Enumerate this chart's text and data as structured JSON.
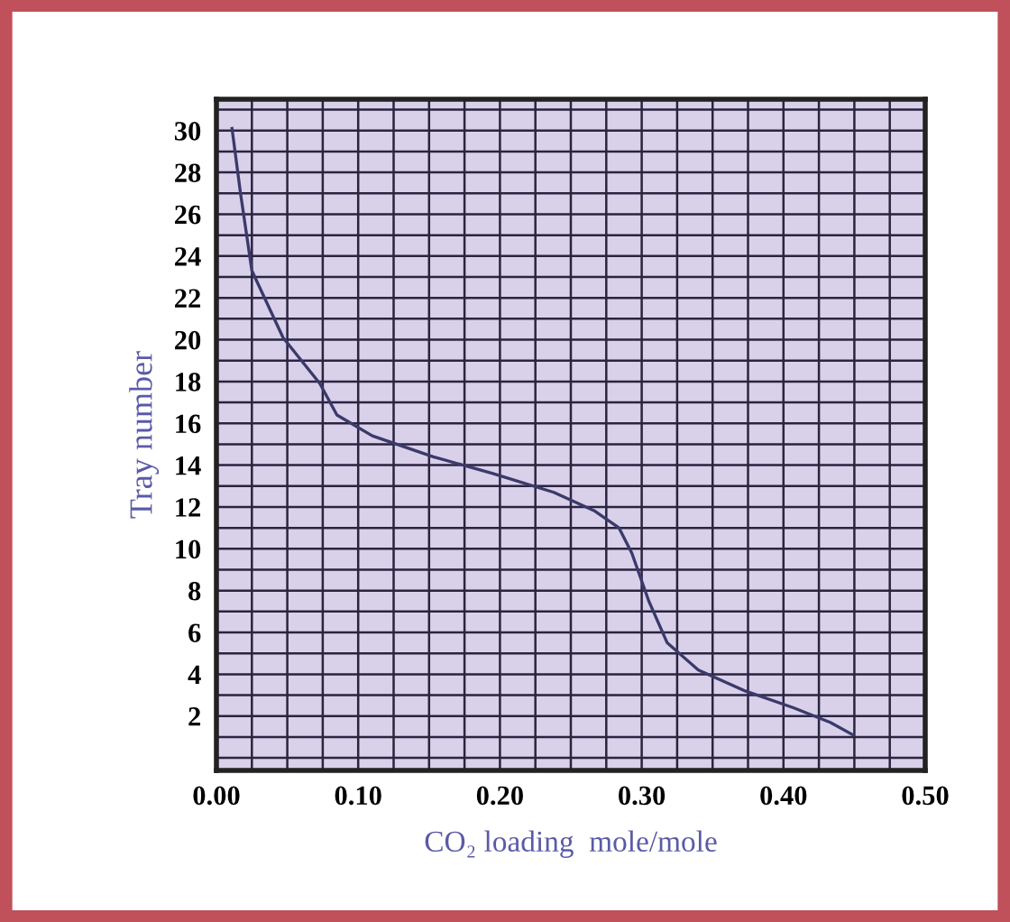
{
  "chart_data": {
    "type": "line",
    "xlabel": "CO₂ loading  mole/mole",
    "ylabel": "Tray number",
    "x": [
      0.011,
      0.017,
      0.025,
      0.047,
      0.073,
      0.085,
      0.11,
      0.153,
      0.195,
      0.238,
      0.267,
      0.284,
      0.293,
      0.305,
      0.318,
      0.34,
      0.373,
      0.407,
      0.433,
      0.449
    ],
    "series": [
      {
        "color": "#3a3a6a",
        "values": [
          30.1,
          27,
          23.3,
          20.1,
          17.9,
          16.4,
          15.4,
          14.4,
          13.6,
          12.7,
          11.8,
          11.0,
          9.8,
          7.5,
          5.5,
          4.2,
          3.2,
          2.4,
          1.7,
          1.1
        ]
      }
    ],
    "xlim": [
      0,
      0.5
    ],
    "ylim": [
      -0.6,
      31.5
    ],
    "xticks": [
      {
        "value": 0,
        "label": "0.00"
      },
      {
        "value": 0.1,
        "label": "0.10"
      },
      {
        "value": 0.2,
        "label": "0.20"
      },
      {
        "value": 0.3,
        "label": "0.30"
      },
      {
        "value": 0.4,
        "label": "0.40"
      },
      {
        "value": 0.5,
        "label": "0.50"
      }
    ],
    "yticks": [
      2,
      4,
      6,
      8,
      10,
      12,
      14,
      16,
      18,
      20,
      22,
      24,
      26,
      28,
      30
    ],
    "grid": true,
    "legend": false,
    "marker": "none",
    "line_style": "solid"
  }
}
